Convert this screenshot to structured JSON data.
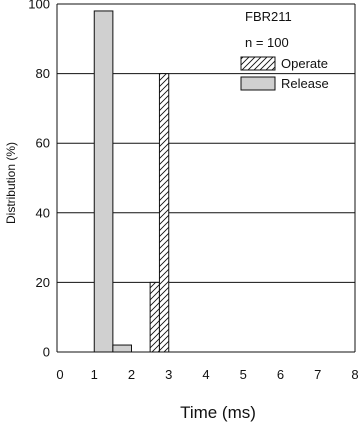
{
  "chart_data": {
    "type": "bar",
    "title": "FBR211",
    "subtitle": "n = 100",
    "xlabel": "Time (ms)",
    "ylabel": "Distribution (%)",
    "xlim": [
      0,
      8
    ],
    "ylim": [
      0,
      100
    ],
    "x_ticks": [
      "0",
      "1",
      "2",
      "3",
      "4",
      "5",
      "6",
      "7",
      "8"
    ],
    "y_ticks": [
      "0",
      "20",
      "40",
      "60",
      "80",
      "100"
    ],
    "grid": "horizontal",
    "legend": "top-right",
    "series": [
      {
        "name": "Operate",
        "pattern": "hatched",
        "bars": [
          {
            "x_start": 2.5,
            "x_end": 2.75,
            "value": 20
          },
          {
            "x_start": 2.75,
            "x_end": 3.0,
            "value": 80
          }
        ]
      },
      {
        "name": "Release",
        "pattern": "gray-fill",
        "color": "#d0d0d0",
        "bars": [
          {
            "x_start": 1.0,
            "x_end": 1.5,
            "value": 98
          },
          {
            "x_start": 1.5,
            "x_end": 2.0,
            "value": 2
          }
        ]
      }
    ]
  }
}
